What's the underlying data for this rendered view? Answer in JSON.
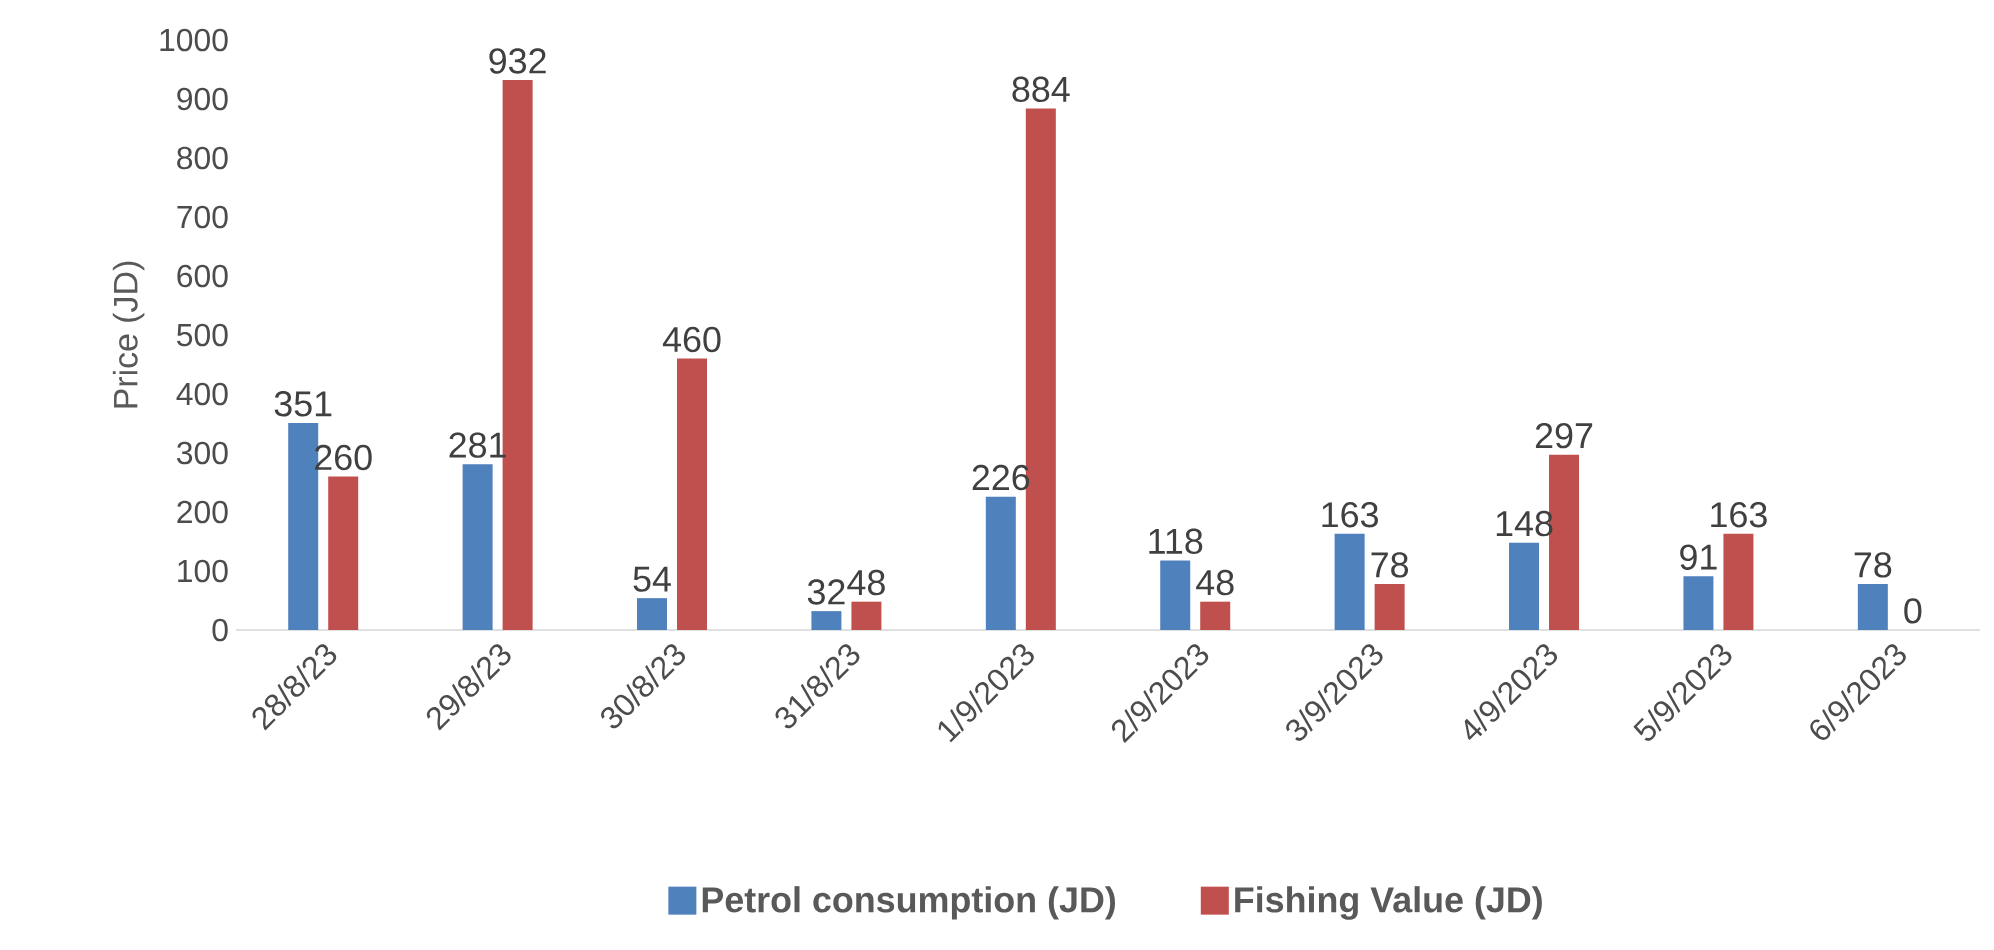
{
  "chart_data": {
    "type": "bar",
    "ylabel": "Price (JD)",
    "categories": [
      "28/8/23",
      "29/8/23",
      "30/8/23",
      "31/8/23",
      "1/9/2023",
      "2/9/2023",
      "3/9/2023",
      "4/9/2023",
      "5/9/2023",
      "6/9/2023"
    ],
    "series": [
      {
        "name": "Petrol consumption (JD)",
        "color": "#4f81bd",
        "values": [
          351,
          281,
          54,
          32,
          226,
          118,
          163,
          148,
          91,
          78
        ]
      },
      {
        "name": "Fishing Value (JD)",
        "color": "#c0504d",
        "values": [
          260,
          932,
          460,
          48,
          884,
          48,
          78,
          297,
          163,
          0
        ]
      }
    ],
    "ylim": [
      0,
      1000
    ],
    "yticks": [
      0,
      100,
      200,
      300,
      400,
      500,
      600,
      700,
      800,
      900,
      1000
    ],
    "data_labels": true,
    "grid": false,
    "legend": "bottom"
  }
}
